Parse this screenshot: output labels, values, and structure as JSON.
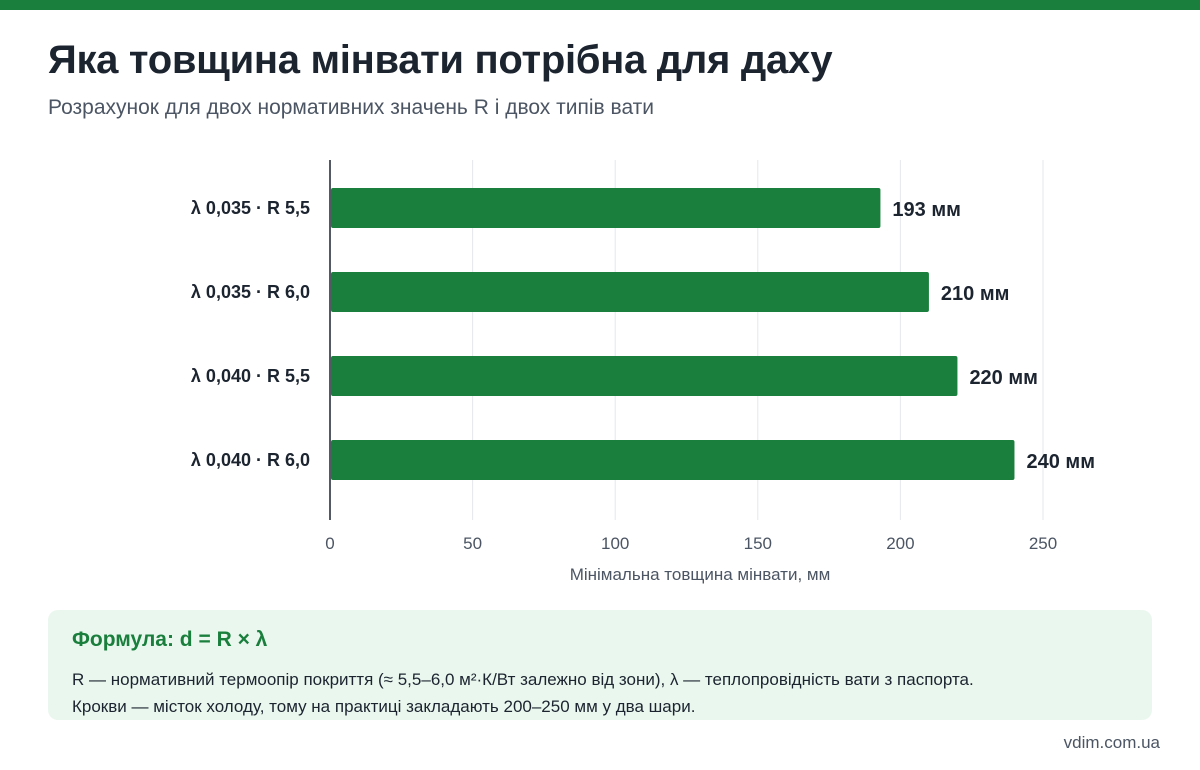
{
  "header": {
    "title": "Яка товщина мінвати потрібна для даху",
    "subtitle": "Розрахунок для двох нормативних значень R і двох типів вати"
  },
  "colors": {
    "accent": "#1a7f3c",
    "bar": "#1a7f3c",
    "formula_bg": "#eaf7ee"
  },
  "chart_data": {
    "type": "bar",
    "orientation": "horizontal",
    "categories": [
      "λ 0,035 · R 5,5",
      "λ 0,035 · R 6,0",
      "λ 0,040 · R 5,5",
      "λ 0,040 · R 6,0"
    ],
    "values": [
      193,
      210,
      220,
      240
    ],
    "value_labels": [
      "193 мм",
      "210 мм",
      "220 мм",
      "240 мм"
    ],
    "xlabel": "Мінімальна товщина мінвати, мм",
    "ylabel": "",
    "xlim": [
      0,
      260
    ],
    "ticks": [
      0,
      50,
      100,
      150,
      200,
      250
    ],
    "grid": true
  },
  "formula": {
    "title": "Формула: d = R × λ",
    "line1": "R — нормативний термоопір покриття (≈ 5,5–6,0 м²·К/Вт залежно від зони), λ — теплопровідність вати з паспорта.",
    "line2": "Крокви — місток холоду, тому на практиці закладають 200–250 мм у два шари."
  },
  "footer": {
    "site": "vdim.com.ua"
  }
}
